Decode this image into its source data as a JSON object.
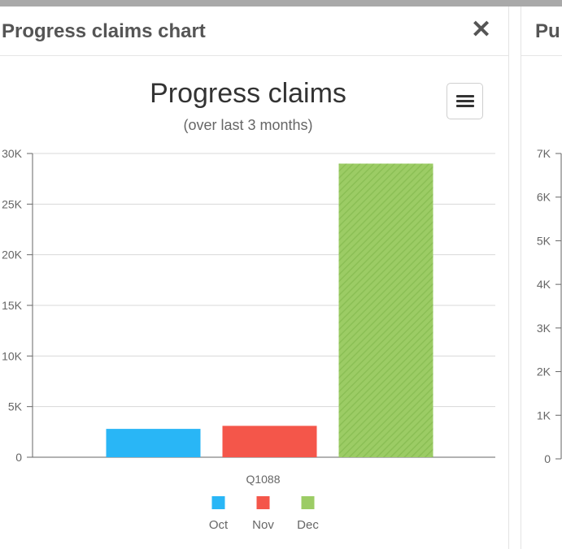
{
  "panel": {
    "title": "Progress claims chart",
    "close_icon": "close-icon",
    "close_glyph": "✕"
  },
  "chart_data": {
    "type": "bar",
    "title": "Progress claims",
    "subtitle": "(over last 3 months)",
    "categories": [
      "Q1088"
    ],
    "series": [
      {
        "name": "Oct",
        "values": [
          2800
        ],
        "color": "#29b6f6"
      },
      {
        "name": "Nov",
        "values": [
          3100
        ],
        "color": "#f4564a"
      },
      {
        "name": "Dec",
        "values": [
          29000
        ],
        "color": "#9ccc65",
        "pattern": "diagonal-hatch"
      }
    ],
    "ylim": [
      0,
      30000
    ],
    "yticks": [
      "0",
      "5K",
      "10K",
      "15K",
      "20K",
      "25K",
      "30K"
    ],
    "grid": true,
    "legend": "bottom-center",
    "menu_icon": "hamburger-menu-icon"
  },
  "panel2": {
    "title": "Pu",
    "chart_data": {
      "type": "bar",
      "ylim": [
        0,
        7000
      ],
      "yticks": [
        "0",
        "1K",
        "2K",
        "3K",
        "4K",
        "5K",
        "6K",
        "7K"
      ]
    }
  }
}
